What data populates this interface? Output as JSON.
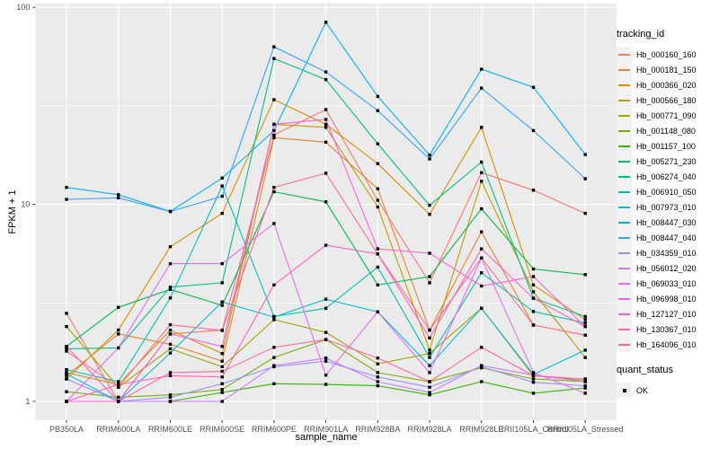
{
  "chart_data": {
    "type": "line",
    "title": "",
    "xlabel": "sample_name",
    "ylabel": "FPKM + 1",
    "y_scale": "log10",
    "ylim": [
      1,
      100
    ],
    "y_ticks": [
      1,
      10,
      100
    ],
    "y_minor_ticks": [
      3.162,
      31.62
    ],
    "grid": "on",
    "panel_bg": "#EBEBEB",
    "grid_color": "#FFFFFF",
    "tick_label_color": "#4D4D4D",
    "point_color": "#000000",
    "point_shape": "filled-square",
    "legend_position": "right",
    "categories": [
      "PB350LA",
      "RRIM600LA",
      "RRIM600LE",
      "RRIM600SE",
      "RRIM600PE",
      "RRIM901LA",
      "RRIM928BA",
      "RRIM928LA",
      "RRIM928LE",
      "RRII105LA_Control",
      "RRII105LA_Stressed"
    ],
    "legend": {
      "color_title": "tracking_id",
      "shape_title": "quant_status",
      "shape_items": [
        {
          "label": "OK",
          "shape": "black-square"
        }
      ]
    },
    "series": [
      {
        "name": "Hb_000160_160",
        "color": "#F8766D",
        "values": [
          2.8,
          1.0,
          2.2,
          2.3,
          22.5,
          30.3,
          10.5,
          4.0,
          14.5,
          11.8,
          9.0
        ]
      },
      {
        "name": "Hb_000181_150",
        "color": "#EA8331",
        "values": [
          1.35,
          2.2,
          1.95,
          1.6,
          21.8,
          20.7,
          12.0,
          2.3,
          7.25,
          2.44,
          2.17
        ]
      },
      {
        "name": "Hb_000366_020",
        "color": "#D89000",
        "values": [
          1.3,
          2.3,
          6.1,
          9.0,
          34.0,
          25.5,
          16.1,
          8.9,
          24.6,
          3.9,
          2.6
        ]
      },
      {
        "name": "Hb_000566_180",
        "color": "#C09B00",
        "values": [
          1.4,
          1.22,
          2.3,
          1.75,
          25.5,
          24.6,
          9.7,
          1.82,
          13.1,
          3.6,
          1.67
        ]
      },
      {
        "name": "Hb_000771_090",
        "color": "#A3A500",
        "values": [
          2.4,
          1.18,
          1.85,
          1.5,
          2.6,
          2.24,
          1.55,
          1.75,
          2.97,
          1.35,
          1.28
        ]
      },
      {
        "name": "Hb_001148_080",
        "color": "#7CAE00",
        "values": [
          1.12,
          1.05,
          1.08,
          1.15,
          1.67,
          2.06,
          1.4,
          1.26,
          1.48,
          1.3,
          1.26
        ]
      },
      {
        "name": "Hb_001157_100",
        "color": "#39B600",
        "values": [
          1.0,
          1.0,
          1.0,
          1.11,
          1.23,
          1.22,
          1.2,
          1.08,
          1.26,
          1.1,
          1.17
        ]
      },
      {
        "name": "Hb_005271_230",
        "color": "#00BB4E",
        "values": [
          1.9,
          3.0,
          3.7,
          3.07,
          11.6,
          10.3,
          3.9,
          4.3,
          9.5,
          4.7,
          4.4
        ]
      },
      {
        "name": "Hb_006274_040",
        "color": "#00C087",
        "values": [
          1.85,
          1.87,
          3.8,
          4.0,
          55.0,
          43.0,
          20.3,
          9.9,
          16.4,
          3.34,
          2.7
        ]
      },
      {
        "name": "Hb_006910_050",
        "color": "#00C0B2",
        "values": [
          1.45,
          1.26,
          3.35,
          12.4,
          2.7,
          2.97,
          4.8,
          1.67,
          4.5,
          2.86,
          2.5
        ]
      },
      {
        "name": "Hb_007973_010",
        "color": "#00BCD8",
        "values": [
          1.38,
          1.0,
          1.76,
          3.2,
          2.68,
          3.3,
          2.85,
          1.52,
          2.97,
          1.37,
          1.82
        ]
      },
      {
        "name": "Hb_008447_030",
        "color": "#00B0F6",
        "values": [
          12.2,
          11.2,
          9.2,
          13.6,
          23.7,
          84.0,
          35.3,
          17.8,
          48.5,
          39.3,
          17.9
        ]
      },
      {
        "name": "Hb_008447_040",
        "color": "#35A2FF",
        "values": [
          10.6,
          10.8,
          9.2,
          11.0,
          63.0,
          47.0,
          29.9,
          17.0,
          38.9,
          23.7,
          13.5
        ]
      },
      {
        "name": "Hb_034359_010",
        "color": "#9590FF",
        "values": [
          1.3,
          1.0,
          1.05,
          1.23,
          1.5,
          1.6,
          1.33,
          1.18,
          1.5,
          1.25,
          1.2
        ]
      },
      {
        "name": "Hb_056012_020",
        "color": "#C77CFF",
        "values": [
          1.0,
          1.0,
          1.0,
          1.0,
          1.52,
          1.66,
          1.26,
          1.11,
          1.52,
          1.36,
          1.26
        ]
      },
      {
        "name": "Hb_069033_010",
        "color": "#E76BF3",
        "values": [
          1.0,
          1.87,
          5.0,
          5.0,
          8.0,
          1.36,
          2.85,
          1.4,
          5.35,
          1.4,
          1.1
        ]
      },
      {
        "name": "Hb_096998_010",
        "color": "#FA62DB",
        "values": [
          1.0,
          1.0,
          2.2,
          1.9,
          25.5,
          27.0,
          5.95,
          5.65,
          3.85,
          4.3,
          2.4
        ]
      },
      {
        "name": "Hb_127127_010",
        "color": "#FF61C3",
        "values": [
          1.0,
          1.22,
          1.35,
          1.33,
          3.9,
          6.2,
          5.6,
          2.1,
          5.95,
          3.34,
          2.4
        ]
      },
      {
        "name": "Hb_130367_010",
        "color": "#FF67A4",
        "values": [
          1.9,
          1.0,
          1.4,
          1.42,
          1.88,
          2.06,
          1.66,
          1.26,
          1.88,
          1.35,
          1.3
        ]
      },
      {
        "name": "Hb_164096_010",
        "color": "#FF6C90",
        "values": [
          1.8,
          1.18,
          2.45,
          2.29,
          12.2,
          14.4,
          5.6,
          2.3,
          5.35,
          2.44,
          2.17
        ]
      }
    ]
  }
}
